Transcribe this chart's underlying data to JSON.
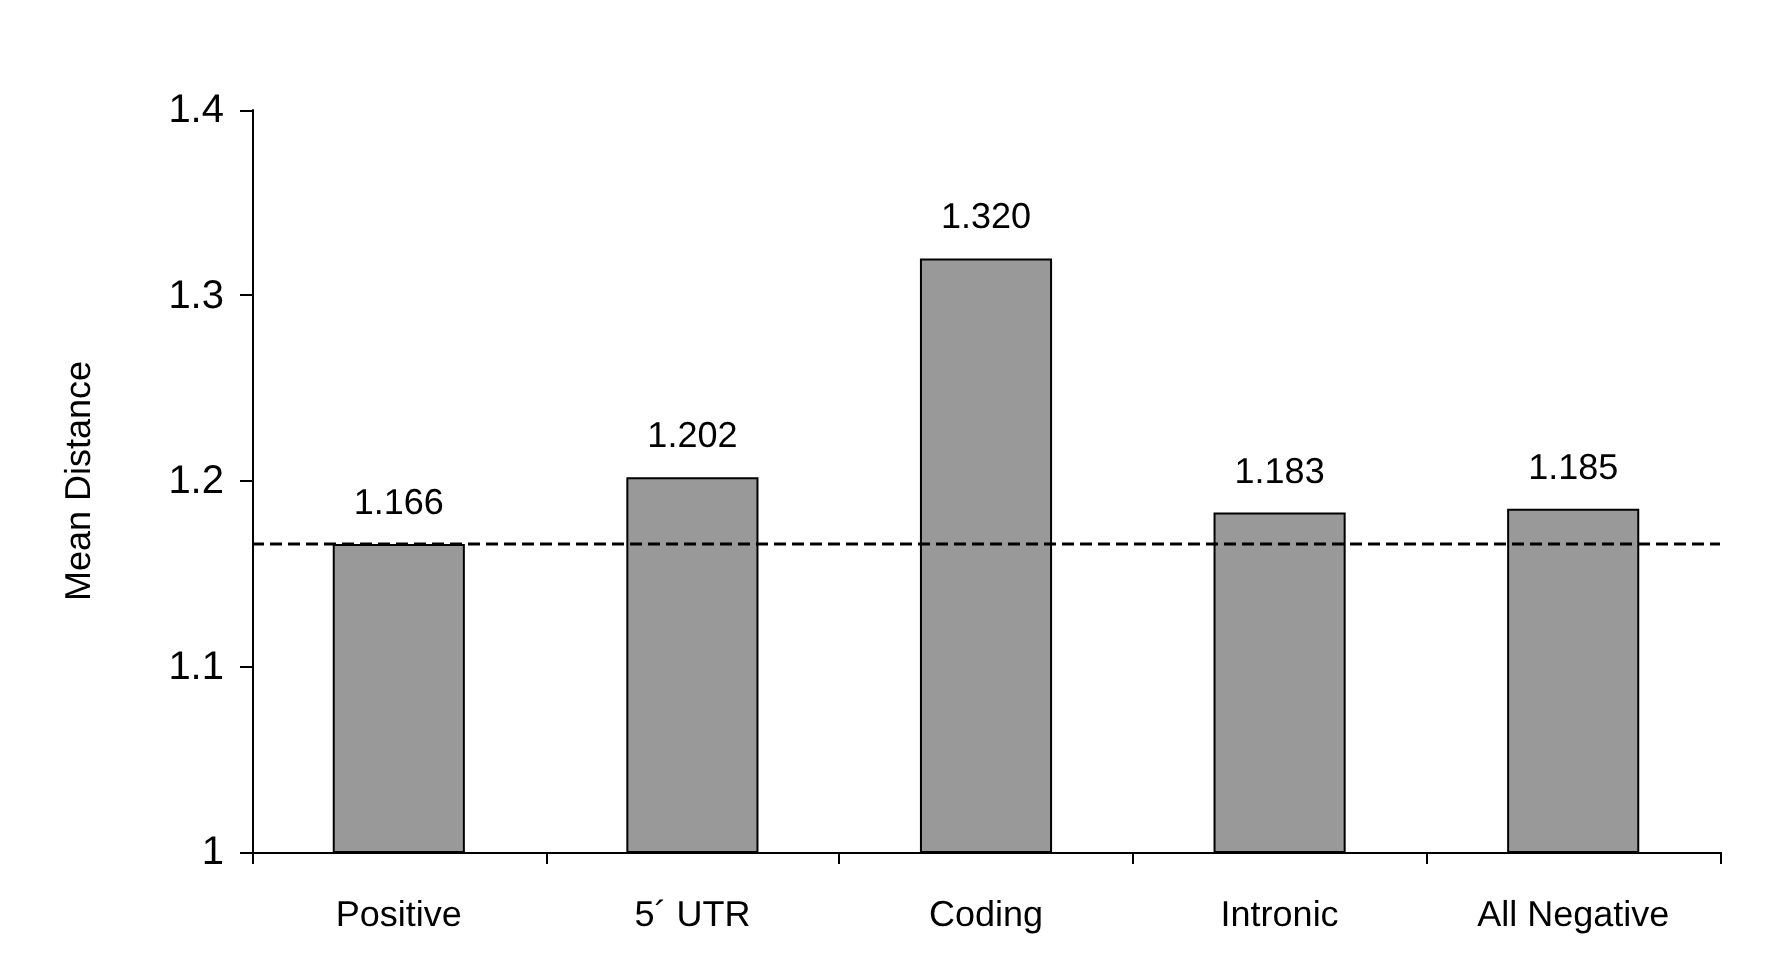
{
  "chart_data": {
    "type": "bar",
    "ylabel": "Mean Distance",
    "categories": [
      "Positive",
      "5´ UTR",
      "Coding",
      "Intronic",
      "All Negative"
    ],
    "values": [
      1.166,
      1.202,
      1.32,
      1.183,
      1.185
    ],
    "color": "#999999",
    "ylim": [
      1,
      1.4
    ],
    "yticks": [
      {
        "value": 1,
        "label": "1"
      },
      1.1,
      1.2,
      1.3,
      1.4
    ],
    "value_labels": [
      "1.166",
      "1.202",
      "1.320",
      "1.183",
      "1.185"
    ],
    "grid": false,
    "ref_lines": [
      {
        "axis": "y",
        "value": 1.166,
        "color": "#000000",
        "line_style": "dashed"
      }
    ]
  }
}
